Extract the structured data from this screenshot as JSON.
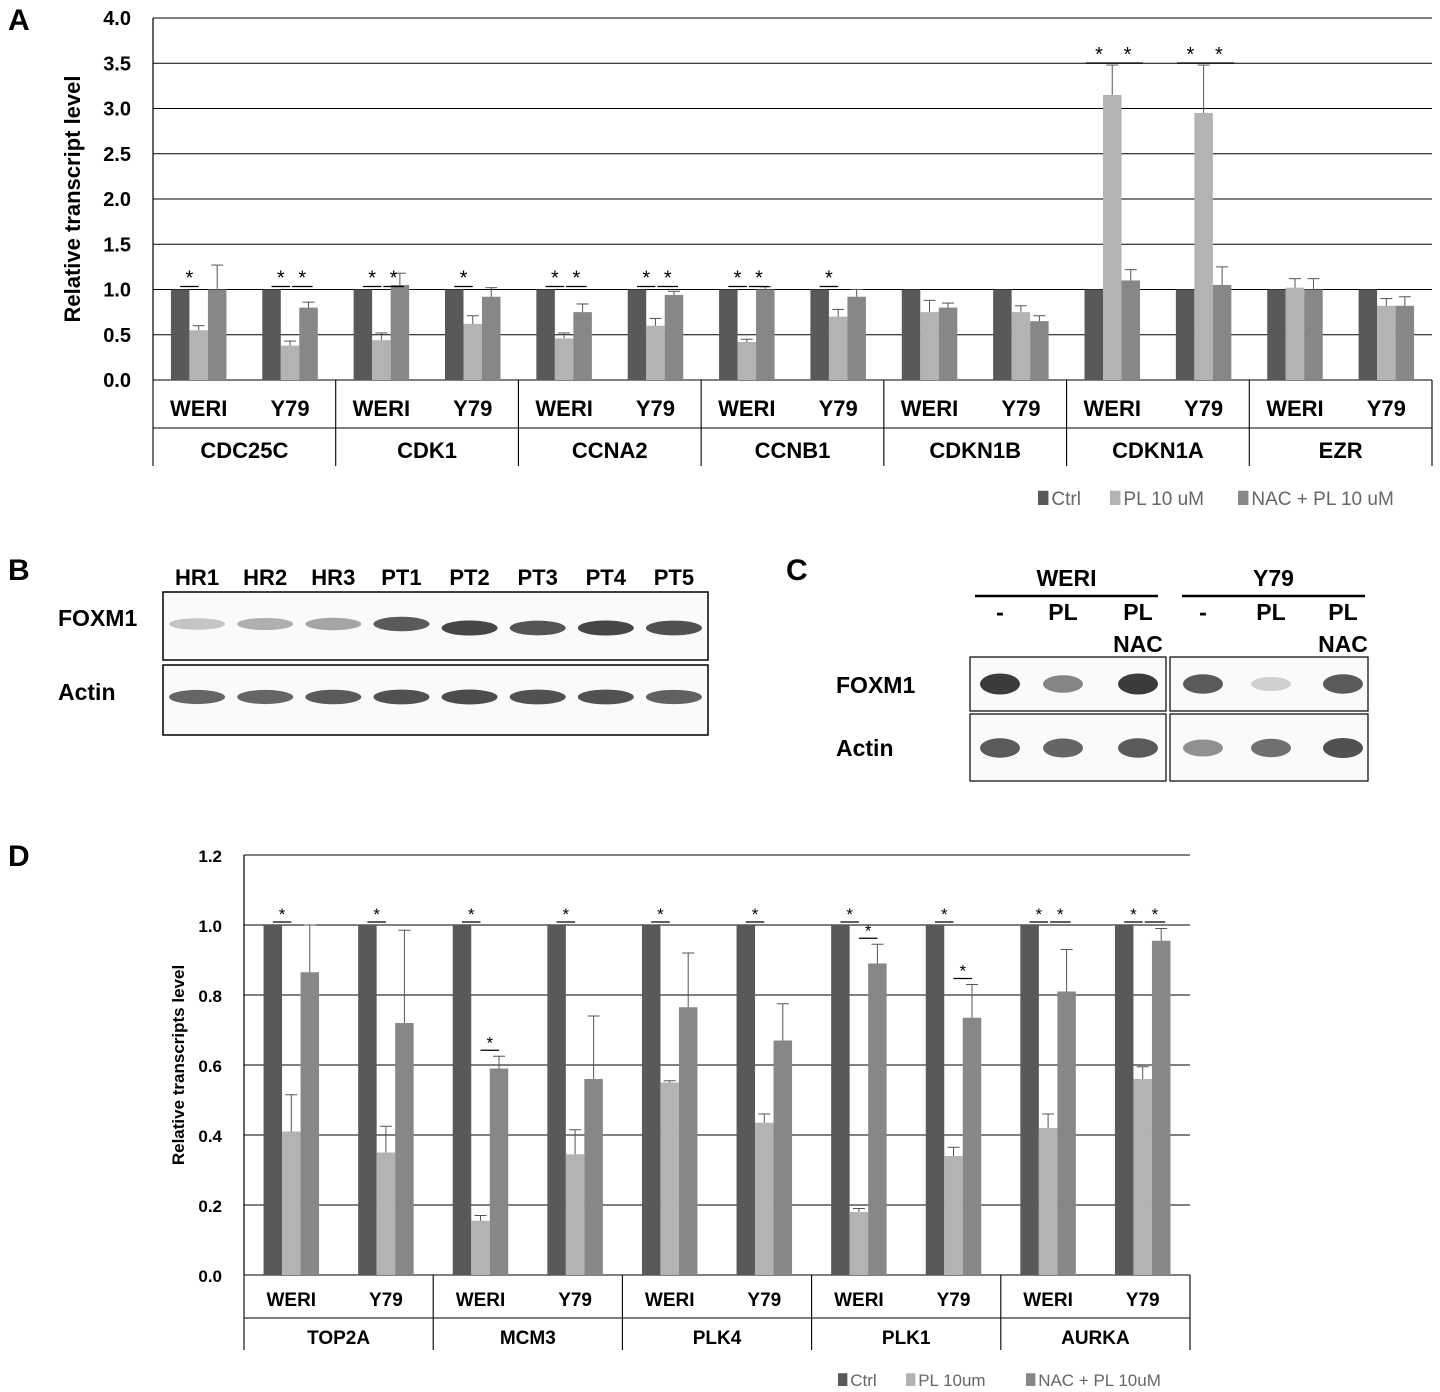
{
  "panels": {
    "A": {
      "letter": "A"
    },
    "B": {
      "letter": "B"
    },
    "C": {
      "letter": "C"
    },
    "D": {
      "letter": "D"
    }
  },
  "chart_data": [
    {
      "type": "bar",
      "panel": "A",
      "ylabel": "Relative transcript level",
      "ylim": [
        0,
        4.0
      ],
      "yticks": [
        "0.0",
        "0.5",
        "1.0",
        "1.5",
        "2.0",
        "2.5",
        "3.0",
        "3.5",
        "4.0"
      ],
      "grid": true,
      "legend_position": "bottom-right",
      "series": [
        {
          "name": "Ctrl",
          "color": "#595959"
        },
        {
          "name": "PL 10 uM",
          "color": "#b3b3b3"
        },
        {
          "name": "NAC + PL 10 uM",
          "color": "#878787"
        }
      ],
      "genes": [
        {
          "gene": "CDC25C",
          "cells": [
            {
              "cell": "WERI",
              "values": [
                1.0,
                0.55,
                1.0
              ],
              "errors": [
                0,
                0.05,
                0.27
              ],
              "stars": [
                true,
                false
              ]
            },
            {
              "cell": "Y79",
              "values": [
                1.0,
                0.38,
                0.8
              ],
              "errors": [
                0,
                0.05,
                0.06
              ],
              "stars": [
                true,
                true
              ]
            }
          ]
        },
        {
          "gene": "CDK1",
          "cells": [
            {
              "cell": "WERI",
              "values": [
                1.0,
                0.44,
                1.05
              ],
              "errors": [
                0,
                0.08,
                0.13
              ],
              "stars": [
                true,
                true
              ]
            },
            {
              "cell": "Y79",
              "values": [
                1.0,
                0.62,
                0.92
              ],
              "errors": [
                0,
                0.09,
                0.1
              ],
              "stars": [
                true,
                false
              ]
            }
          ]
        },
        {
          "gene": "CCNA2",
          "cells": [
            {
              "cell": "WERI",
              "values": [
                1.0,
                0.46,
                0.75
              ],
              "errors": [
                0,
                0.06,
                0.09
              ],
              "stars": [
                true,
                true
              ]
            },
            {
              "cell": "Y79",
              "values": [
                1.0,
                0.6,
                0.94
              ],
              "errors": [
                0,
                0.08,
                0.04
              ],
              "stars": [
                true,
                true
              ]
            }
          ]
        },
        {
          "gene": "CCNB1",
          "cells": [
            {
              "cell": "WERI",
              "values": [
                1.0,
                0.42,
                1.0
              ],
              "errors": [
                0,
                0.03,
                0.03
              ],
              "stars": [
                true,
                true
              ]
            },
            {
              "cell": "Y79",
              "values": [
                1.0,
                0.7,
                0.92
              ],
              "errors": [
                0,
                0.08,
                0.08
              ],
              "stars": [
                true,
                false
              ]
            }
          ]
        },
        {
          "gene": "CDKN1B",
          "cells": [
            {
              "cell": "WERI",
              "values": [
                1.0,
                0.75,
                0.8
              ],
              "errors": [
                0,
                0.13,
                0.05
              ],
              "stars": [
                false,
                false
              ]
            },
            {
              "cell": "Y79",
              "values": [
                1.0,
                0.75,
                0.65
              ],
              "errors": [
                0,
                0.07,
                0.06
              ],
              "stars": [
                false,
                false
              ]
            }
          ]
        },
        {
          "gene": "CDKN1A",
          "cells": [
            {
              "cell": "WERI",
              "values": [
                1.0,
                3.15,
                1.1
              ],
              "errors": [
                0,
                0.33,
                0.12
              ],
              "stars": [
                true,
                true
              ]
            },
            {
              "cell": "Y79",
              "values": [
                1.0,
                2.95,
                1.05
              ],
              "errors": [
                0,
                0.53,
                0.2
              ],
              "stars": [
                true,
                true
              ]
            }
          ]
        },
        {
          "gene": "EZR",
          "cells": [
            {
              "cell": "WERI",
              "values": [
                1.0,
                1.02,
                1.0
              ],
              "errors": [
                0,
                0.1,
                0.12
              ],
              "stars": [
                false,
                false
              ]
            },
            {
              "cell": "Y79",
              "values": [
                1.0,
                0.82,
                0.82
              ],
              "errors": [
                0,
                0.08,
                0.1
              ],
              "stars": [
                false,
                false
              ]
            }
          ]
        }
      ]
    },
    {
      "type": "bar",
      "panel": "D",
      "ylabel": "Relative transcripts level",
      "ylim": [
        0,
        1.2
      ],
      "yticks": [
        "0.0",
        "0.2",
        "0.4",
        "0.6",
        "0.8",
        "1.0",
        "1.2"
      ],
      "grid": true,
      "legend_position": "bottom-right",
      "series": [
        {
          "name": "Ctrl",
          "color": "#595959"
        },
        {
          "name": "PL 10um",
          "color": "#b3b3b3"
        },
        {
          "name": "NAC + PL 10uM",
          "color": "#878787"
        }
      ],
      "genes": [
        {
          "gene": "TOP2A",
          "cells": [
            {
              "cell": "WERI",
              "values": [
                1.0,
                0.41,
                0.865
              ],
              "errors": [
                0,
                0.105,
                0.135
              ],
              "stars": [
                true,
                false
              ]
            },
            {
              "cell": "Y79",
              "values": [
                1.0,
                0.35,
                0.72
              ],
              "errors": [
                0,
                0.075,
                0.265
              ],
              "stars": [
                true,
                false
              ]
            }
          ]
        },
        {
          "gene": "MCM3",
          "cells": [
            {
              "cell": "WERI",
              "values": [
                1.0,
                0.155,
                0.59
              ],
              "errors": [
                0,
                0.015,
                0.035
              ],
              "stars": [
                true,
                "np"
              ]
            },
            {
              "cell": "Y79",
              "values": [
                1.0,
                0.345,
                0.56
              ],
              "errors": [
                0,
                0.07,
                0.18
              ],
              "stars": [
                true,
                false
              ]
            }
          ]
        },
        {
          "gene": "PLK4",
          "cells": [
            {
              "cell": "WERI",
              "values": [
                1.0,
                0.55,
                0.765
              ],
              "errors": [
                0,
                0.005,
                0.155
              ],
              "stars": [
                true,
                false
              ]
            },
            {
              "cell": "Y79",
              "values": [
                1.0,
                0.435,
                0.67
              ],
              "errors": [
                0,
                0.025,
                0.105
              ],
              "stars": [
                true,
                false
              ]
            }
          ]
        },
        {
          "gene": "PLK1",
          "cells": [
            {
              "cell": "WERI",
              "values": [
                1.0,
                0.18,
                0.89
              ],
              "errors": [
                0,
                0.01,
                0.055
              ],
              "stars": [
                true,
                "np"
              ]
            },
            {
              "cell": "Y79",
              "values": [
                1.0,
                0.34,
                0.735
              ],
              "errors": [
                0,
                0.025,
                0.095
              ],
              "stars": [
                true,
                "np"
              ]
            }
          ]
        },
        {
          "gene": "AURKA",
          "cells": [
            {
              "cell": "WERI",
              "values": [
                1.0,
                0.42,
                0.81
              ],
              "errors": [
                0,
                0.04,
                0.12
              ],
              "stars": [
                true,
                true
              ]
            },
            {
              "cell": "Y79",
              "values": [
                1.0,
                0.56,
                0.955
              ],
              "errors": [
                0,
                0.035,
                0.035
              ],
              "stars": [
                true,
                true
              ]
            }
          ]
        }
      ]
    }
  ],
  "blotB": {
    "lanes": [
      "HR1",
      "HR2",
      "HR3",
      "PT1",
      "PT2",
      "PT3",
      "PT4",
      "PT5"
    ],
    "rows": [
      {
        "label": "FOXM1",
        "intensity": [
          0.25,
          0.35,
          0.4,
          0.75,
          0.85,
          0.78,
          0.85,
          0.8
        ]
      },
      {
        "label": "Actin",
        "intensity": [
          0.7,
          0.7,
          0.75,
          0.8,
          0.82,
          0.8,
          0.8,
          0.72
        ]
      }
    ]
  },
  "blotC": {
    "groups": [
      {
        "name": "WERI",
        "lanes": [
          "-",
          "PL",
          "PL\nNAC"
        ]
      },
      {
        "name": "Y79",
        "lanes": [
          "-",
          "PL",
          "PL\nNAC"
        ]
      }
    ],
    "rows": [
      {
        "label": "FOXM1",
        "intensity": [
          0.9,
          0.55,
          0.9,
          0.75,
          0.2,
          0.75
        ]
      },
      {
        "label": "Actin",
        "intensity": [
          0.75,
          0.7,
          0.75,
          0.5,
          0.65,
          0.8
        ]
      }
    ],
    "star": "*"
  }
}
